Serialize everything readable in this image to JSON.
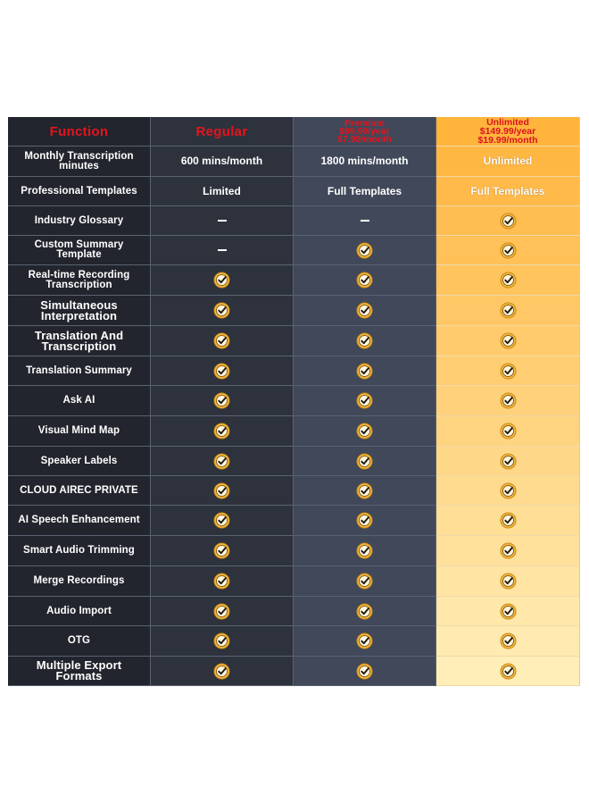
{
  "header": {
    "function_label": "Function",
    "regular_label": "Regular",
    "premium_lines": [
      "Premium",
      "$89.99/year",
      "$7.99/month"
    ],
    "unlimited_lines": [
      "Unlimited",
      "$149.99/year",
      "$19.99/month"
    ]
  },
  "rows": [
    {
      "feature": "Monthly Transcription minutes",
      "regular": "600 mins/month",
      "premium": "1800 mins/month",
      "unlimited": "Unlimited"
    },
    {
      "feature": "Professional Templates",
      "regular": "Limited",
      "premium": "Full Templates",
      "unlimited": "Full Templates"
    },
    {
      "feature": "Industry Glossary",
      "regular": "dash",
      "premium": "dash",
      "unlimited": "check"
    },
    {
      "feature": "Custom Summary Template",
      "regular": "dash",
      "premium": "check",
      "unlimited": "check"
    },
    {
      "feature": "Real-time Recording Transcription",
      "regular": "check",
      "premium": "check",
      "unlimited": "check"
    },
    {
      "feature": "Simultaneous Interpretation",
      "regular": "check",
      "premium": "check",
      "unlimited": "check"
    },
    {
      "feature": "Translation And Transcription",
      "regular": "check",
      "premium": "check",
      "unlimited": "check"
    },
    {
      "feature": "Translation Summary",
      "regular": "check",
      "premium": "check",
      "unlimited": "check"
    },
    {
      "feature": "Ask AI",
      "regular": "check",
      "premium": "check",
      "unlimited": "check"
    },
    {
      "feature": "Visual Mind Map",
      "regular": "check",
      "premium": "check",
      "unlimited": "check"
    },
    {
      "feature": "Speaker Labels",
      "regular": "check",
      "premium": "check",
      "unlimited": "check"
    },
    {
      "feature": "CLOUD AIREC PRIVATE",
      "regular": "check",
      "premium": "check",
      "unlimited": "check"
    },
    {
      "feature": "AI Speech Enhancement",
      "regular": "check",
      "premium": "check",
      "unlimited": "check"
    },
    {
      "feature": "Smart Audio Trimming",
      "regular": "check",
      "premium": "check",
      "unlimited": "check"
    },
    {
      "feature": "Merge Recordings",
      "regular": "check",
      "premium": "check",
      "unlimited": "check"
    },
    {
      "feature": "Audio Import",
      "regular": "check",
      "premium": "check",
      "unlimited": "check"
    },
    {
      "feature": "OTG",
      "regular": "check",
      "premium": "check",
      "unlimited": "check"
    },
    {
      "feature": "Multiple Export Formats",
      "regular": "check",
      "premium": "check",
      "unlimited": "check"
    }
  ],
  "icons": {
    "check": "checkmark-circle-icon",
    "dash": "dash-icon"
  },
  "colors": {
    "header_text_red": "#e4141e",
    "check_gold": "#f2b63c",
    "unlimited_top": "#ffb43c",
    "unlimited_bottom": "#ffeeb8"
  }
}
